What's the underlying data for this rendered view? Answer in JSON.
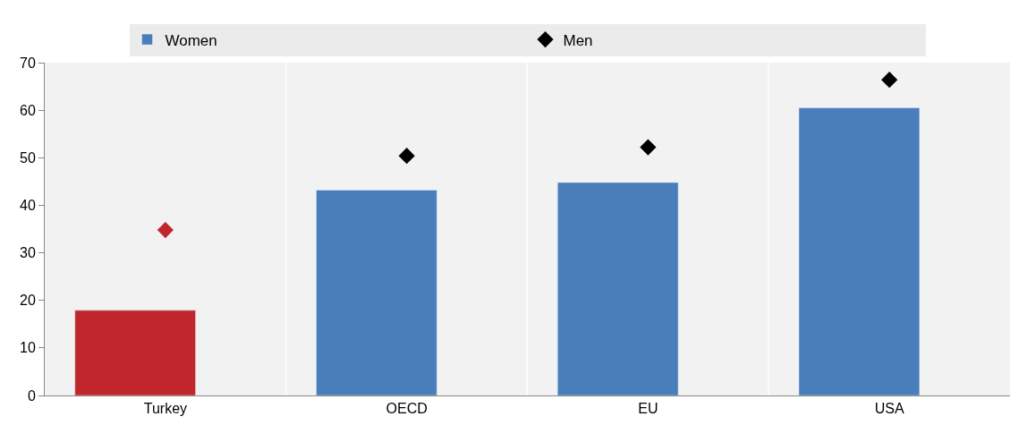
{
  "chart_data": {
    "type": "bar",
    "categories": [
      "Turkey",
      "OECD",
      "EU",
      "USA"
    ],
    "series": [
      {
        "name": "Women",
        "color": "#4a7ebb",
        "colors": [
          "#c0272d",
          "#4a7ebb",
          "#4a7ebb",
          "#4a7ebb"
        ],
        "values": [
          17.9,
          43.2,
          44.8,
          60.5
        ]
      },
      {
        "name": "Men",
        "type": "scatter",
        "color": "#000000",
        "colors": [
          "#c0272d",
          "#000000",
          "#000000",
          "#000000"
        ],
        "values": [
          34.8,
          50.4,
          52.2,
          66.4
        ]
      }
    ],
    "ylim": [
      0,
      70
    ],
    "yticks": [
      0,
      10,
      20,
      30,
      40,
      50,
      60,
      70
    ],
    "grid": "x",
    "legend": "top",
    "marker": "diamond"
  }
}
